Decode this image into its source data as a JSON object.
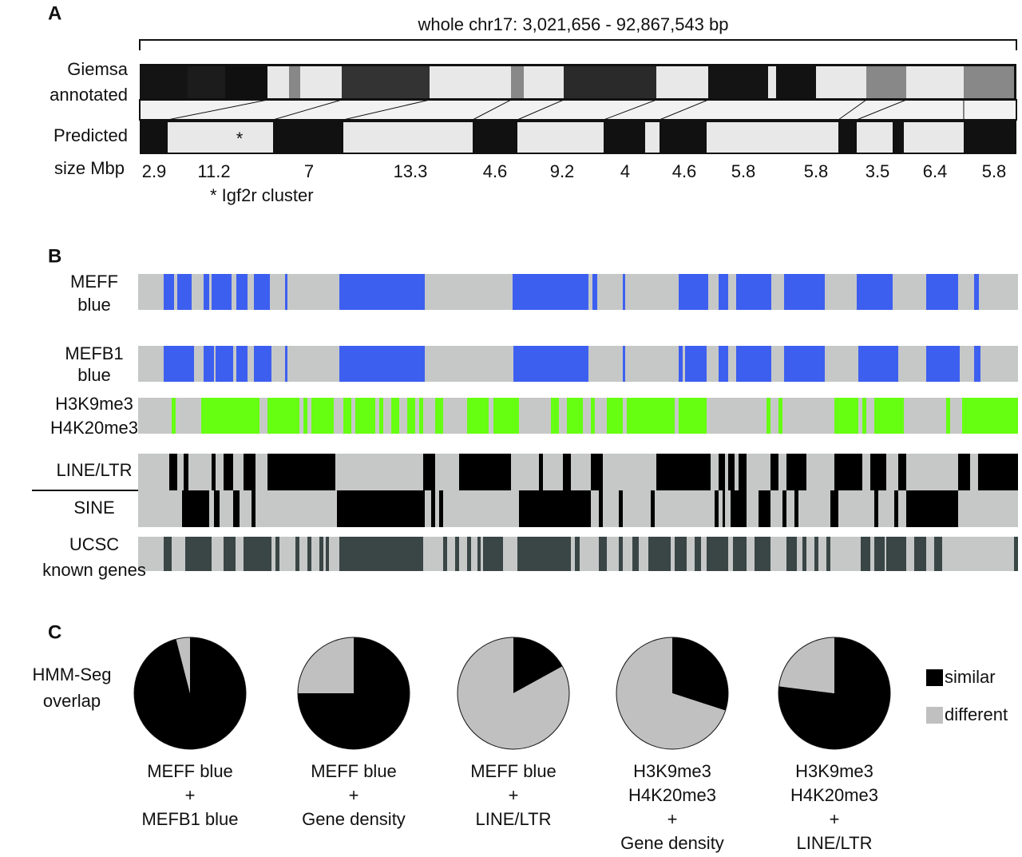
{
  "panel_a": {
    "label": "A",
    "title": "whole chr17: 3,021,656 - 92,867,543 bp",
    "giemsa_label": [
      "Giemsa",
      "annotated"
    ],
    "predicted_label": "Predicted",
    "size_label": "size Mbp",
    "sizes": [
      2.9,
      11.2,
      7,
      13.3,
      4.6,
      9.2,
      4,
      4.6,
      5.8,
      5.8,
      3.5,
      6.4,
      5.8
    ],
    "marker": "*",
    "note": "* Igf2r cluster"
  },
  "panel_b": {
    "label": "B",
    "tracks": [
      [
        "MEFF",
        "blue"
      ],
      [
        "MEFB1",
        "blue"
      ],
      [
        "H3K9me3",
        "H4K20me3"
      ],
      [
        "LINE/LTR"
      ],
      [
        "SINE"
      ],
      [
        "UCSC",
        "known genes"
      ]
    ]
  },
  "panel_c": {
    "label": "C",
    "row_label": [
      "HMM-Seg",
      "overlap"
    ]
  },
  "chart_data": [
    {
      "type": "pie",
      "categories": [
        "similar",
        "different"
      ],
      "colors": [
        "#000000",
        "#c0c0c0"
      ],
      "values": [
        96,
        4
      ],
      "caption": [
        "MEFF blue",
        "+",
        "MEFB1 blue"
      ]
    },
    {
      "type": "pie",
      "categories": [
        "similar",
        "different"
      ],
      "colors": [
        "#000000",
        "#c0c0c0"
      ],
      "values": [
        75,
        25
      ],
      "caption": [
        "MEFF blue",
        "+",
        "Gene density"
      ]
    },
    {
      "type": "pie",
      "categories": [
        "similar",
        "different"
      ],
      "colors": [
        "#000000",
        "#c0c0c0"
      ],
      "values": [
        17,
        83
      ],
      "caption": [
        "MEFF blue",
        "+",
        "LINE/LTR"
      ]
    },
    {
      "type": "pie",
      "categories": [
        "similar",
        "different"
      ],
      "colors": [
        "#000000",
        "#c0c0c0"
      ],
      "values": [
        30,
        70
      ],
      "caption": [
        "H3K9me3",
        "H4K20me3",
        "+",
        "Gene density"
      ]
    },
    {
      "type": "pie",
      "categories": [
        "similar",
        "different"
      ],
      "colors": [
        "#000000",
        "#c0c0c0"
      ],
      "values": [
        77,
        23
      ],
      "caption": [
        "H3K9me3",
        "H4K20me3",
        "+",
        "LINE/LTR"
      ]
    }
  ]
}
